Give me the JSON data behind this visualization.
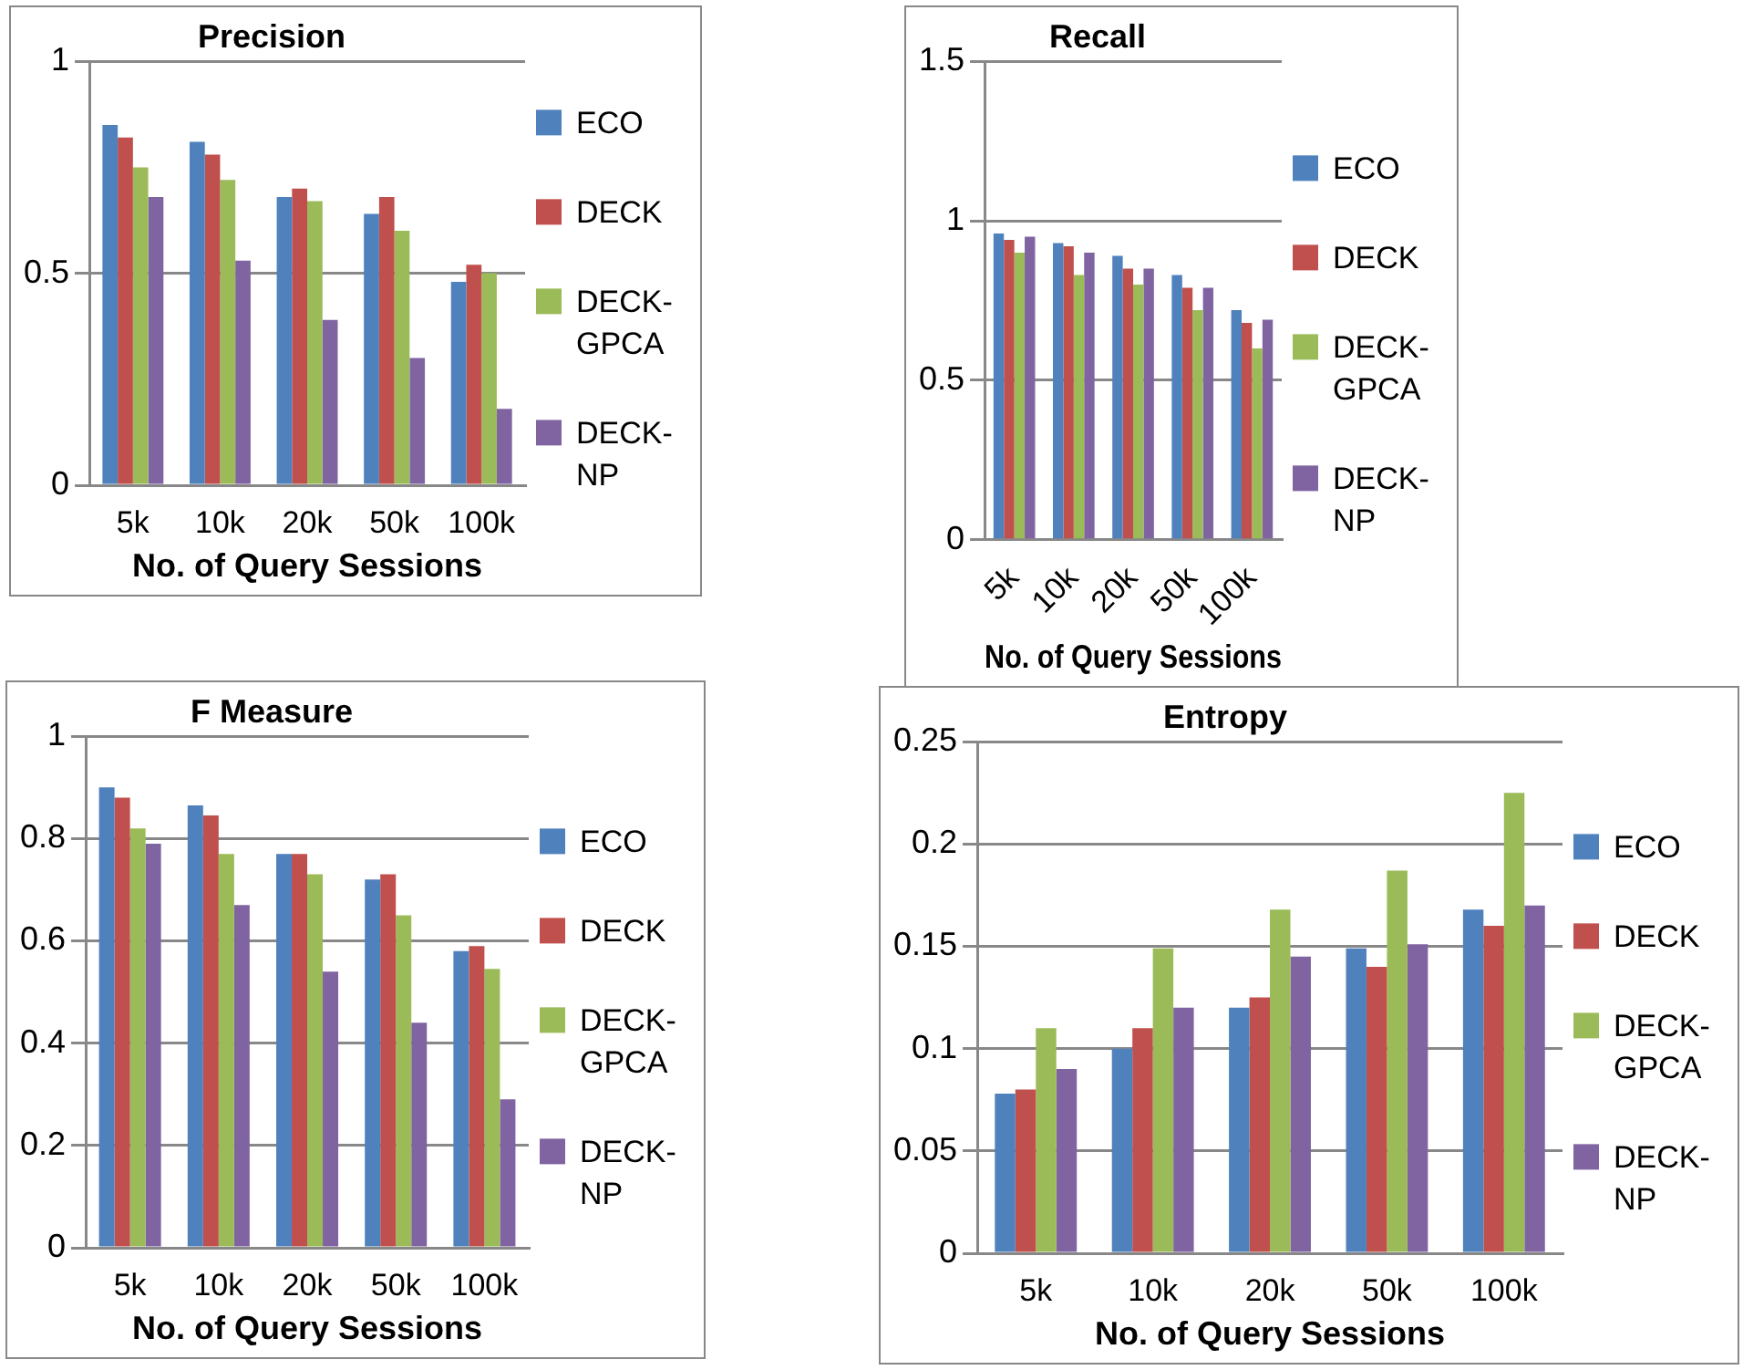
{
  "chart_data": [
    {
      "type": "bar",
      "title": "Precision",
      "xlabel": "No. of Query Sessions",
      "categories": [
        "5k",
        "10k",
        "20k",
        "50k",
        "100k"
      ],
      "ylim": [
        0,
        1
      ],
      "yticks": [
        0,
        0.5,
        1
      ],
      "grid": "y",
      "legend": "right",
      "series": [
        {
          "name": "ECO",
          "color": "#4f81bd",
          "values": [
            0.85,
            0.81,
            0.68,
            0.64,
            0.48
          ]
        },
        {
          "name": "DECK",
          "color": "#c0504d",
          "values": [
            0.82,
            0.78,
            0.7,
            0.68,
            0.52
          ]
        },
        {
          "name": "DECK-GPCA",
          "color": "#9bbb59",
          "values": [
            0.75,
            0.72,
            0.67,
            0.6,
            0.5
          ]
        },
        {
          "name": "DECK-NP",
          "color": "#8064a2",
          "values": [
            0.68,
            0.53,
            0.39,
            0.3,
            0.18
          ]
        }
      ]
    },
    {
      "type": "bar",
      "title": "Recall",
      "xlabel": "No. of Query Sessions",
      "categories": [
        "5k",
        "10k",
        "20k",
        "50k",
        "100k"
      ],
      "ylim": [
        0,
        1.5
      ],
      "yticks": [
        0,
        0.5,
        1,
        1.5
      ],
      "grid": "y",
      "legend": "right",
      "series": [
        {
          "name": "ECO",
          "color": "#4f81bd",
          "values": [
            0.96,
            0.93,
            0.89,
            0.83,
            0.72
          ]
        },
        {
          "name": "DECK",
          "color": "#c0504d",
          "values": [
            0.94,
            0.92,
            0.85,
            0.79,
            0.68
          ]
        },
        {
          "name": "DECK-GPCA",
          "color": "#9bbb59",
          "values": [
            0.9,
            0.83,
            0.8,
            0.72,
            0.6
          ]
        },
        {
          "name": "DECK-NP",
          "color": "#8064a2",
          "values": [
            0.95,
            0.9,
            0.85,
            0.79,
            0.69
          ]
        }
      ]
    },
    {
      "type": "bar",
      "title": "F Measure",
      "xlabel": "No. of Query Sessions",
      "categories": [
        "5k",
        "10k",
        "20k",
        "50k",
        "100k"
      ],
      "ylim": [
        0,
        1
      ],
      "yticks": [
        0,
        0.2,
        0.4,
        0.6,
        0.8,
        1
      ],
      "grid": "y",
      "legend": "right",
      "series": [
        {
          "name": "ECO",
          "color": "#4f81bd",
          "values": [
            0.9,
            0.865,
            0.77,
            0.72,
            0.58
          ]
        },
        {
          "name": "DECK",
          "color": "#c0504d",
          "values": [
            0.88,
            0.845,
            0.77,
            0.73,
            0.59
          ]
        },
        {
          "name": "DECK-GPCA",
          "color": "#9bbb59",
          "values": [
            0.82,
            0.77,
            0.73,
            0.65,
            0.545
          ]
        },
        {
          "name": "DECK-NP",
          "color": "#8064a2",
          "values": [
            0.79,
            0.67,
            0.54,
            0.44,
            0.29
          ]
        }
      ]
    },
    {
      "type": "bar",
      "title": "Entropy",
      "xlabel": "No. of Query Sessions",
      "categories": [
        "5k",
        "10k",
        "20k",
        "50k",
        "100k"
      ],
      "ylim": [
        0,
        0.25
      ],
      "yticks": [
        0,
        0.05,
        0.1,
        0.15,
        0.2,
        0.25
      ],
      "grid": "y",
      "legend": "right",
      "series": [
        {
          "name": "ECO",
          "color": "#4f81bd",
          "values": [
            0.078,
            0.1,
            0.12,
            0.149,
            0.168
          ]
        },
        {
          "name": "DECK",
          "color": "#c0504d",
          "values": [
            0.08,
            0.11,
            0.125,
            0.14,
            0.16
          ]
        },
        {
          "name": "DECK-GPCA",
          "color": "#9bbb59",
          "values": [
            0.11,
            0.149,
            0.168,
            0.187,
            0.225
          ]
        },
        {
          "name": "DECK-NP",
          "color": "#8064a2",
          "values": [
            0.09,
            0.12,
            0.145,
            0.151,
            0.17
          ]
        }
      ]
    }
  ]
}
